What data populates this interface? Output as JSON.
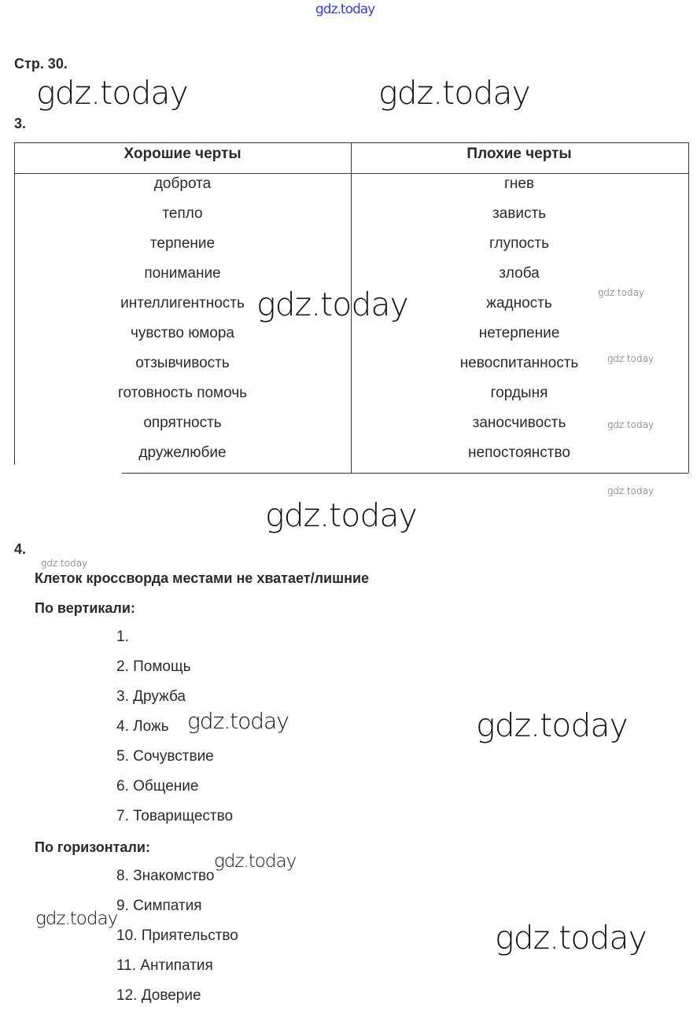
{
  "watermark": "gdz.today",
  "page_label": "Стр. 30.",
  "task3": {
    "number": "3.",
    "headers": [
      "Хорошие черты",
      "Плохие черты"
    ],
    "good": [
      "доброта",
      "тепло",
      "терпение",
      "понимание",
      "интеллигентность",
      "чувство юмора",
      "отзывчивость",
      "готовность помочь",
      "опрятность",
      "дружелюбие"
    ],
    "bad": [
      "гнев",
      "зависть",
      "глупость",
      "злоба",
      "жадность",
      "нетерпение",
      "невоспитанность",
      "гордыня",
      "заносчивость",
      "непостоянство"
    ]
  },
  "task4": {
    "number": "4.",
    "note": "Клеток кроссворда местами не хватает/лишние",
    "vertical_title": "По вертикали:",
    "vertical": [
      "1.",
      "2. Помощь",
      "3. Дружба",
      "4. Ложь",
      "5. Сочувствие",
      "6. Общение",
      "7. Товарищество"
    ],
    "horizontal_title": "По горизонтали:",
    "horizontal": [
      "8. Знакомство",
      "9. Симпатия",
      "10. Приятельство",
      "11. Антипатия",
      "12. Доверие"
    ]
  }
}
